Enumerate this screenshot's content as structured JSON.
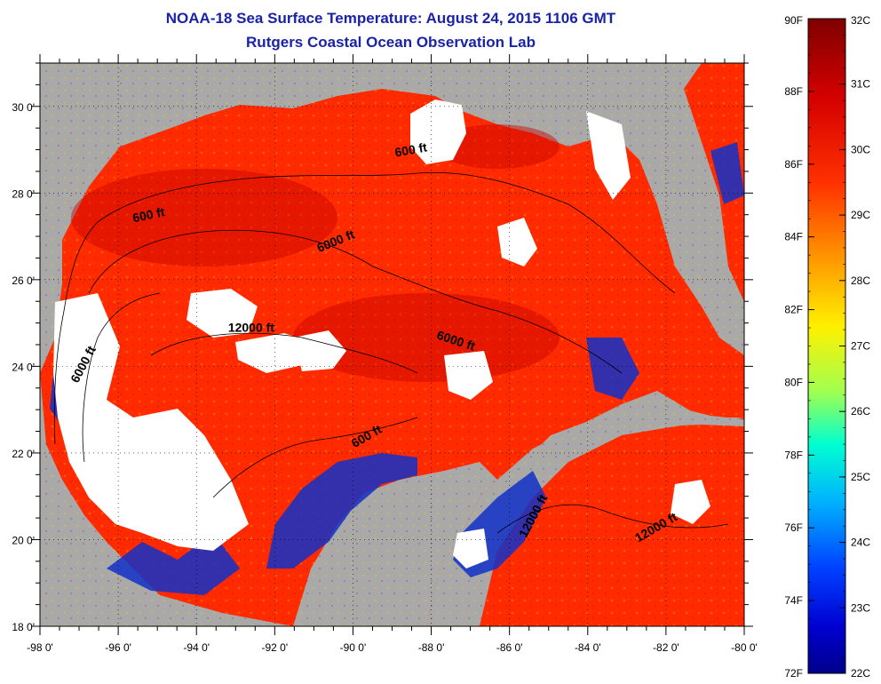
{
  "title": {
    "line1": "NOAA-18 Sea Surface Temperature:  August 24, 2015 1106 GMT",
    "line2": "Rutgers Coastal Ocean Observation Lab"
  },
  "map": {
    "lon_range": [
      -98,
      -80
    ],
    "lat_range": [
      18,
      31
    ],
    "x_ticks": [
      "-98 0'",
      "-96 0'",
      "-94 0'",
      "-92 0'",
      "-90 0'",
      "-88 0'",
      "-86 0'",
      "-84 0'",
      "-82 0'",
      "-80 0'"
    ],
    "y_ticks": [
      "18 0'",
      "20 0'",
      "22 0'",
      "24 0'",
      "26 0'",
      "28 0'",
      "30 0'"
    ],
    "colors": {
      "land": "#a9a9a9",
      "cloud": "#ffffff",
      "warm": "#ff2a00",
      "hot": "#c80000",
      "cool": "#1030c8"
    },
    "contour_labels": [
      {
        "text": "600 ft",
        "lon": -95.2,
        "lat": 27.4,
        "angle": -12
      },
      {
        "text": "6000 ft",
        "lon": -90.4,
        "lat": 26.8,
        "angle": -22
      },
      {
        "text": "600 ft",
        "lon": -88.5,
        "lat": 28.9,
        "angle": -10
      },
      {
        "text": "12000 ft",
        "lon": -92.6,
        "lat": 24.8,
        "angle": 0
      },
      {
        "text": "6000 ft",
        "lon": -87.4,
        "lat": 24.5,
        "angle": 18
      },
      {
        "text": "6000 ft",
        "lon": -96.8,
        "lat": 24.0,
        "angle": -62
      },
      {
        "text": "600 ft",
        "lon": -89.6,
        "lat": 22.3,
        "angle": -30
      },
      {
        "text": "12000 ft",
        "lon": -85.3,
        "lat": 20.5,
        "angle": -62
      },
      {
        "text": "12000 ft",
        "lon": -82.2,
        "lat": 20.2,
        "angle": -30
      }
    ]
  },
  "colorbar": {
    "f_labels": [
      "90F",
      "88F",
      "86F",
      "84F",
      "82F",
      "80F",
      "78F",
      "76F",
      "74F",
      "72F"
    ],
    "c_labels": [
      "32C",
      "31C",
      "30C",
      "29C",
      "28C",
      "27C",
      "26C",
      "25C",
      "24C",
      "23C",
      "22C"
    ],
    "f_range": [
      72,
      90
    ],
    "c_range": [
      22,
      32
    ]
  }
}
